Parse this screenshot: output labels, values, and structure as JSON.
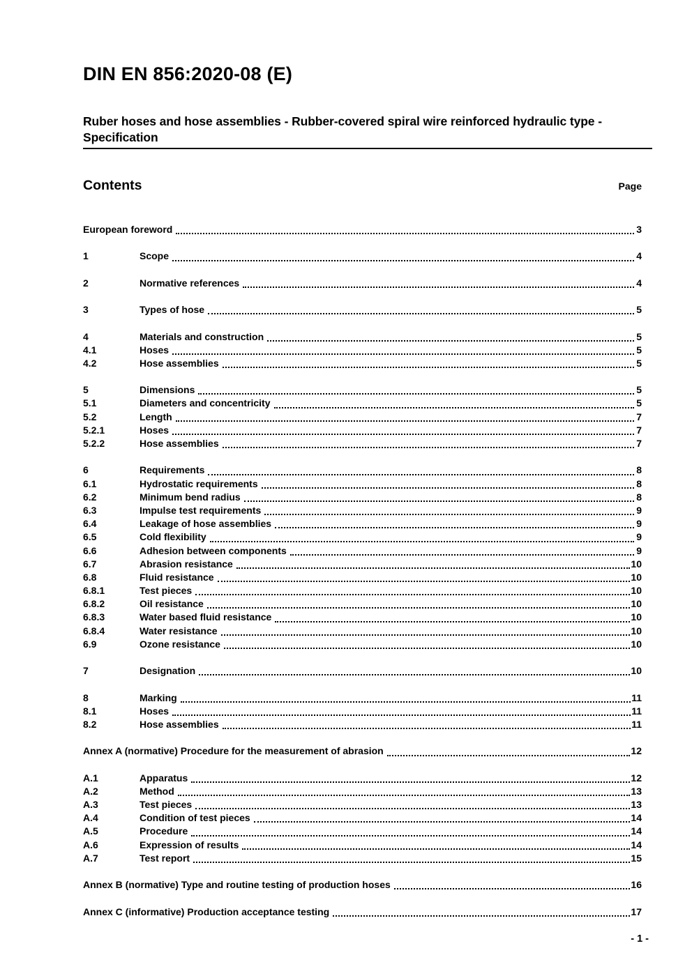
{
  "header": {
    "title": "DIN EN 856:2020-08 (E)",
    "subtitle": "Ruber hoses and hose assemblies - Rubber-covered spiral wire reinforced hydraulic type - Specification"
  },
  "toc": {
    "heading": "Contents",
    "page_label": "Page",
    "entries": [
      {
        "num": "",
        "title": "European foreword",
        "page": "3",
        "gap_before": false
      },
      {
        "num": "1",
        "title": "Scope",
        "page": "4",
        "gap_before": true
      },
      {
        "num": "2",
        "title": "Normative references",
        "page": "4",
        "gap_before": true
      },
      {
        "num": "3",
        "title": "Types of hose",
        "page": "5",
        "gap_before": true
      },
      {
        "num": "4",
        "title": "Materials and construction",
        "page": "5",
        "gap_before": true
      },
      {
        "num": "4.1",
        "title": "Hoses",
        "page": "5",
        "gap_before": false
      },
      {
        "num": "4.2",
        "title": "Hose assemblies",
        "page": "5",
        "gap_before": false
      },
      {
        "num": "5",
        "title": "Dimensions",
        "page": "5",
        "gap_before": true
      },
      {
        "num": "5.1",
        "title": "Diameters and concentricity",
        "page": "5",
        "gap_before": false
      },
      {
        "num": "5.2",
        "title": "Length",
        "page": "7",
        "gap_before": false
      },
      {
        "num": "5.2.1",
        "title": "Hoses",
        "page": "7",
        "gap_before": false
      },
      {
        "num": "5.2.2",
        "title": "Hose assemblies",
        "page": "7",
        "gap_before": false
      },
      {
        "num": "6",
        "title": "Requirements",
        "page": "8",
        "gap_before": true
      },
      {
        "num": "6.1",
        "title": "Hydrostatic requirements",
        "page": "8",
        "gap_before": false
      },
      {
        "num": "6.2",
        "title": "Minimum bend radius",
        "page": "8",
        "gap_before": false
      },
      {
        "num": "6.3",
        "title": "Impulse test requirements",
        "page": "9",
        "gap_before": false
      },
      {
        "num": "6.4",
        "title": "Leakage of hose assemblies",
        "page": "9",
        "gap_before": false
      },
      {
        "num": "6.5",
        "title": "Cold flexibility",
        "page": "9",
        "gap_before": false
      },
      {
        "num": "6.6",
        "title": "Adhesion between components",
        "page": "9",
        "gap_before": false
      },
      {
        "num": "6.7",
        "title": "Abrasion resistance",
        "page": "10",
        "gap_before": false
      },
      {
        "num": "6.8",
        "title": "Fluid resistance",
        "page": "10",
        "gap_before": false
      },
      {
        "num": "6.8.1",
        "title": "Test pieces",
        "page": "10",
        "gap_before": false
      },
      {
        "num": "6.8.2",
        "title": "Oil resistance",
        "page": "10",
        "gap_before": false
      },
      {
        "num": "6.8.3",
        "title": "Water based fluid resistance",
        "page": "10",
        "gap_before": false
      },
      {
        "num": "6.8.4",
        "title": "Water resistance",
        "page": "10",
        "gap_before": false
      },
      {
        "num": "6.9",
        "title": "Ozone resistance",
        "page": "10",
        "gap_before": false
      },
      {
        "num": "7",
        "title": "Designation",
        "page": "10",
        "gap_before": true
      },
      {
        "num": "8",
        "title": "Marking",
        "page": "11",
        "gap_before": true
      },
      {
        "num": "8.1",
        "title": "Hoses",
        "page": "11",
        "gap_before": false
      },
      {
        "num": "8.2",
        "title": "Hose assemblies",
        "page": "11",
        "gap_before": false
      },
      {
        "num": "",
        "title": "Annex A (normative) Procedure for the measurement of abrasion",
        "page": "12",
        "gap_before": true
      },
      {
        "num": "A.1",
        "title": "Apparatus",
        "page": "12",
        "gap_before": true
      },
      {
        "num": "A.2",
        "title": "Method",
        "page": "13",
        "gap_before": false
      },
      {
        "num": "A.3",
        "title": "Test pieces",
        "page": "13",
        "gap_before": false
      },
      {
        "num": "A.4",
        "title": "Condition of test pieces",
        "page": "14",
        "gap_before": false
      },
      {
        "num": "A.5",
        "title": "Procedure",
        "page": "14",
        "gap_before": false
      },
      {
        "num": "A.6",
        "title": "Expression of results",
        "page": "14",
        "gap_before": false
      },
      {
        "num": "A.7",
        "title": "Test report",
        "page": "15",
        "gap_before": false
      },
      {
        "num": "",
        "title": "Annex B (normative) Type and routine testing of production hoses",
        "page": "16",
        "gap_before": true
      },
      {
        "num": "",
        "title": "Annex C (informative) Production acceptance testing",
        "page": "17",
        "gap_before": true
      }
    ]
  },
  "footer": {
    "text": "- 1 -"
  }
}
